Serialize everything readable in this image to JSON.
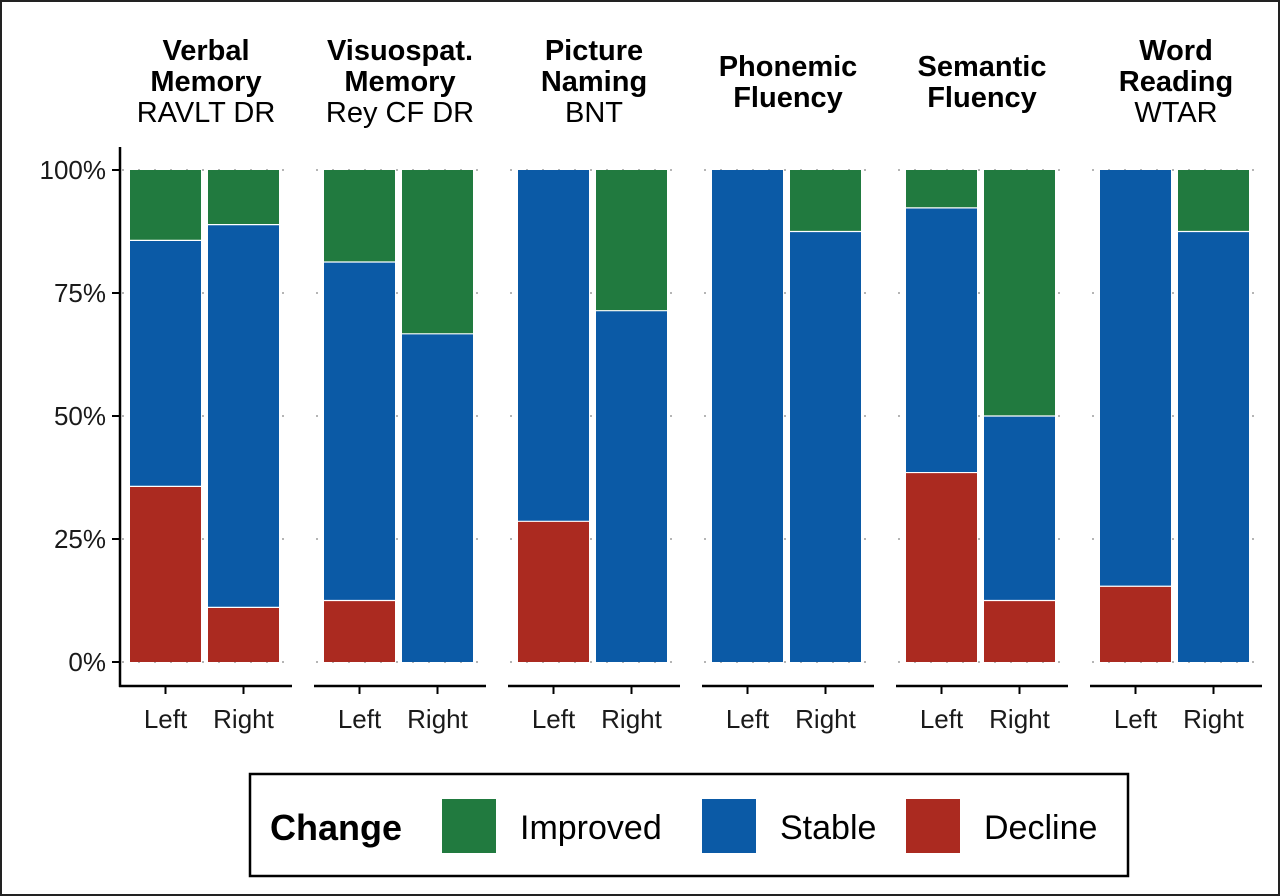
{
  "chart_data": {
    "type": "bar",
    "stacked": true,
    "y_format": "percent",
    "ylim": [
      0,
      100
    ],
    "y_ticks": [
      "0%",
      "25%",
      "50%",
      "75%",
      "100%"
    ],
    "categories": [
      "Left",
      "Right"
    ],
    "colors": {
      "Improved": "#217a3f",
      "Stable": "#0b5aa6",
      "Decline": "#ab2a20"
    },
    "legend": {
      "title": "Change",
      "placement": "bottom",
      "items": [
        "Improved",
        "Stable",
        "Decline"
      ]
    },
    "panels": [
      {
        "title_lines": [
          "Verbal",
          "Memory"
        ],
        "subtitle": "RAVLT DR",
        "bars": [
          {
            "category": "Left",
            "Decline": 35.7,
            "Stable": 50.0,
            "Improved": 14.3
          },
          {
            "category": "Right",
            "Decline": 11.1,
            "Stable": 77.8,
            "Improved": 11.1
          }
        ]
      },
      {
        "title_lines": [
          "Visuospat.",
          "Memory"
        ],
        "subtitle": "Rey CF DR",
        "bars": [
          {
            "category": "Left",
            "Decline": 12.5,
            "Stable": 68.8,
            "Improved": 18.7
          },
          {
            "category": "Right",
            "Decline": 0,
            "Stable": 66.7,
            "Improved": 33.3
          }
        ]
      },
      {
        "title_lines": [
          "Picture",
          "Naming"
        ],
        "subtitle": "BNT",
        "bars": [
          {
            "category": "Left",
            "Decline": 28.6,
            "Stable": 71.4,
            "Improved": 0
          },
          {
            "category": "Right",
            "Decline": 0,
            "Stable": 71.4,
            "Improved": 28.6
          }
        ]
      },
      {
        "title_lines": [
          "Phonemic",
          "Fluency"
        ],
        "subtitle": "",
        "bars": [
          {
            "category": "Left",
            "Decline": 0,
            "Stable": 100,
            "Improved": 0
          },
          {
            "category": "Right",
            "Decline": 0,
            "Stable": 87.5,
            "Improved": 12.5
          }
        ]
      },
      {
        "title_lines": [
          "Semantic",
          "Fluency"
        ],
        "subtitle": "",
        "bars": [
          {
            "category": "Left",
            "Decline": 38.5,
            "Stable": 53.8,
            "Improved": 7.7
          },
          {
            "category": "Right",
            "Decline": 12.5,
            "Stable": 37.5,
            "Improved": 50.0
          }
        ]
      },
      {
        "title_lines": [
          "Word",
          "Reading"
        ],
        "subtitle": "WTAR",
        "bars": [
          {
            "category": "Left",
            "Decline": 15.4,
            "Stable": 84.6,
            "Improved": 0
          },
          {
            "category": "Right",
            "Decline": 0,
            "Stable": 87.5,
            "Improved": 12.5
          }
        ]
      }
    ]
  }
}
